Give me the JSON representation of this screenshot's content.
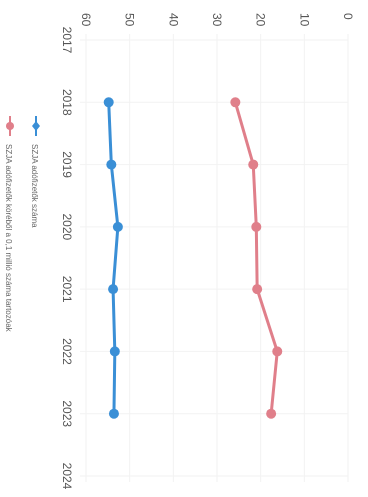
{
  "chart_data": {
    "type": "line",
    "title": "",
    "xlabel": "",
    "ylabel": "",
    "x": [
      2018,
      2019,
      2020,
      2021,
      2022,
      2023
    ],
    "x_ticks": [
      "2017",
      "2018",
      "2019",
      "2020",
      "2021",
      "2022",
      "2023",
      "2024"
    ],
    "xlim": [
      2017,
      2024
    ],
    "y_ticks": [
      "0",
      "10",
      "20",
      "30",
      "40",
      "50",
      "60"
    ],
    "ylim": [
      0,
      60
    ],
    "grid": true,
    "legend_position": "bottom",
    "orientation": "rotated-90-clockwise",
    "series": [
      {
        "name": "SZJA adófizetők száma",
        "color": "#3a8fd6",
        "marker": "diamond",
        "values": [
          54.8,
          54.2,
          52.7,
          53.8,
          53.4,
          53.6
        ]
      },
      {
        "name": "SZJA adófizetők köréből a 0,1 millió száma tartozóak",
        "color": "#e07f8a",
        "marker": "circle",
        "values": [
          25.8,
          21.7,
          21.0,
          20.8,
          16.2,
          17.6
        ]
      }
    ]
  }
}
